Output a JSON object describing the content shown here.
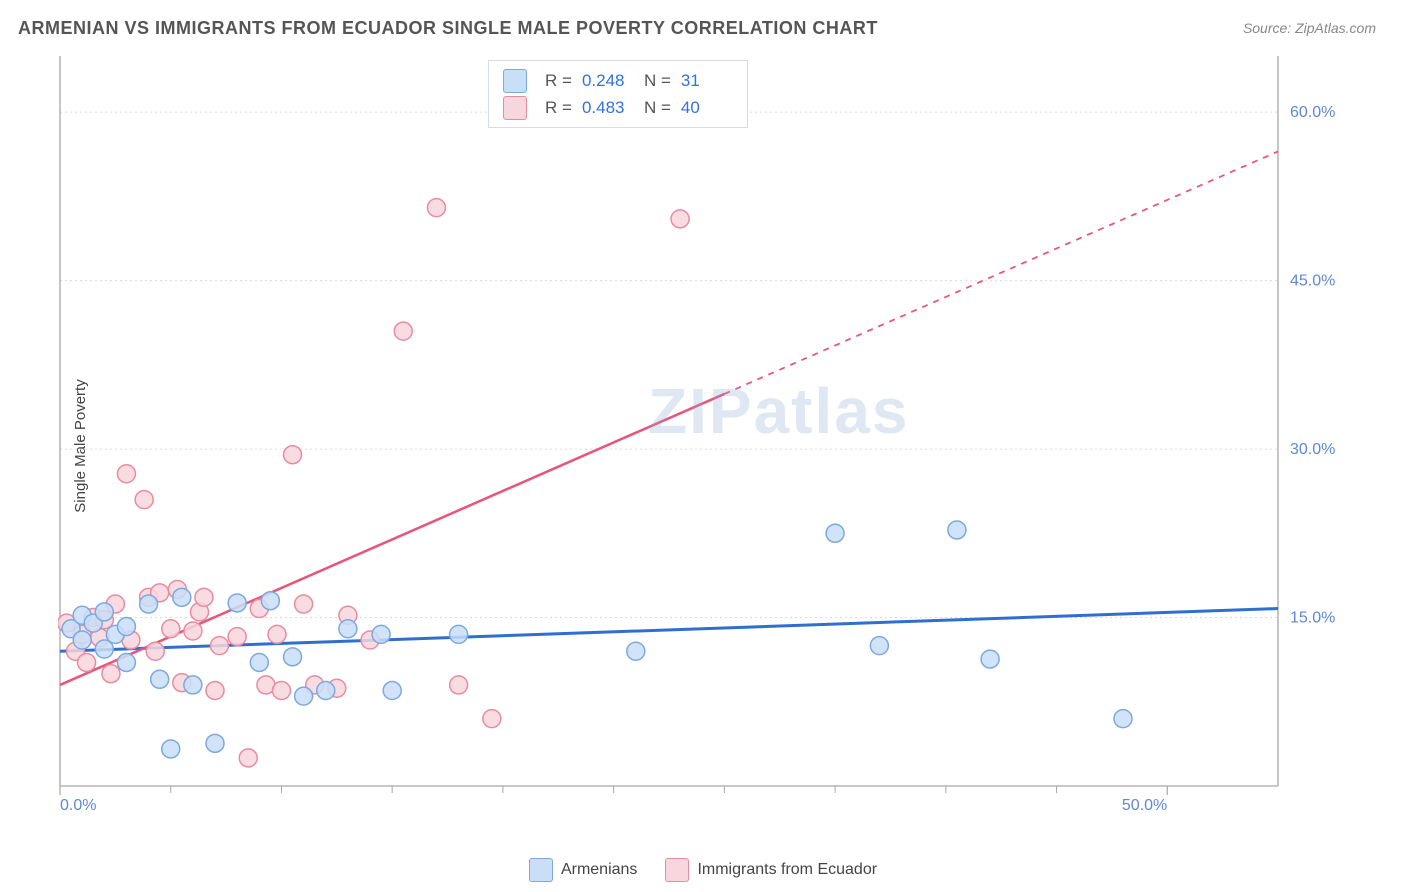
{
  "title": "ARMENIAN VS IMMIGRANTS FROM ECUADOR SINGLE MALE POVERTY CORRELATION CHART",
  "source": "Source: ZipAtlas.com",
  "ylabel": "Single Male Poverty",
  "watermark_zip": "ZIP",
  "watermark_atlas": "atlas",
  "chart": {
    "type": "scatter",
    "background_color": "#ffffff",
    "grid_color": "#dcdcdc",
    "axis_color": "#a8a8a8",
    "xlim": [
      0,
      55
    ],
    "ylim": [
      0,
      65
    ],
    "x_ticks": [
      0,
      50
    ],
    "x_tick_labels": [
      "0.0%",
      "50.0%"
    ],
    "x_minor_ticks": [
      5,
      10,
      15,
      20,
      25,
      30,
      35,
      40,
      45
    ],
    "y_ticks": [
      15,
      30,
      45,
      60
    ],
    "y_tick_labels": [
      "15.0%",
      "30.0%",
      "45.0%",
      "60.0%"
    ],
    "tick_label_color": "#5e88d6",
    "tick_fontsize": 16,
    "marker_radius": 9,
    "marker_stroke_width": 1.5,
    "series": [
      {
        "name": "Armenians",
        "fill": "#c9def7",
        "stroke": "#7da9e0",
        "line_color": "#2f6fd0",
        "line_width": 3,
        "R": "0.248",
        "N": "31",
        "regression": {
          "x1": 0,
          "y1": 12.0,
          "x2": 55,
          "y2": 15.8,
          "dash_from_x": null
        },
        "points": [
          [
            0.5,
            14.0
          ],
          [
            1.0,
            15.2
          ],
          [
            1.0,
            13.0
          ],
          [
            1.5,
            14.5
          ],
          [
            2.0,
            15.5
          ],
          [
            2.0,
            12.2
          ],
          [
            2.5,
            13.5
          ],
          [
            3.0,
            14.2
          ],
          [
            3.0,
            11.0
          ],
          [
            4.0,
            16.2
          ],
          [
            4.5,
            9.5
          ],
          [
            5.0,
            3.3
          ],
          [
            5.5,
            16.8
          ],
          [
            6.0,
            9.0
          ],
          [
            7.0,
            3.8
          ],
          [
            8.0,
            16.3
          ],
          [
            9.0,
            11.0
          ],
          [
            9.5,
            16.5
          ],
          [
            10.5,
            11.5
          ],
          [
            11.0,
            8.0
          ],
          [
            12.0,
            8.5
          ],
          [
            13.0,
            14.0
          ],
          [
            14.5,
            13.5
          ],
          [
            15.0,
            8.5
          ],
          [
            18.0,
            13.5
          ],
          [
            26.0,
            12.0
          ],
          [
            35.0,
            22.5
          ],
          [
            37.0,
            12.5
          ],
          [
            40.5,
            22.8
          ],
          [
            42.0,
            11.3
          ],
          [
            48.0,
            6.0
          ]
        ]
      },
      {
        "name": "Immigrants from Ecuador",
        "fill": "#f8d6dd",
        "stroke": "#e98ba1",
        "line_color": "#e8547a",
        "line_width": 2.5,
        "R": "0.483",
        "N": "40",
        "regression": {
          "x1": 0,
          "y1": 9.0,
          "x2": 55,
          "y2": 56.5,
          "dash_from_x": 30
        },
        "points": [
          [
            0.3,
            14.5
          ],
          [
            0.7,
            12.0
          ],
          [
            1.0,
            13.5
          ],
          [
            1.2,
            11.0
          ],
          [
            1.5,
            15.0
          ],
          [
            1.8,
            13.2
          ],
          [
            2.0,
            14.8
          ],
          [
            2.3,
            10.0
          ],
          [
            2.5,
            16.2
          ],
          [
            3.0,
            27.8
          ],
          [
            3.2,
            13.0
          ],
          [
            3.8,
            25.5
          ],
          [
            4.0,
            16.8
          ],
          [
            4.3,
            12.0
          ],
          [
            4.5,
            17.2
          ],
          [
            5.0,
            14.0
          ],
          [
            5.3,
            17.5
          ],
          [
            5.5,
            9.2
          ],
          [
            6.0,
            13.8
          ],
          [
            6.3,
            15.5
          ],
          [
            6.5,
            16.8
          ],
          [
            7.0,
            8.5
          ],
          [
            7.2,
            12.5
          ],
          [
            8.0,
            13.3
          ],
          [
            8.5,
            2.5
          ],
          [
            9.0,
            15.8
          ],
          [
            9.3,
            9.0
          ],
          [
            9.8,
            13.5
          ],
          [
            10.0,
            8.5
          ],
          [
            10.5,
            29.5
          ],
          [
            11.0,
            16.2
          ],
          [
            11.5,
            9.0
          ],
          [
            12.5,
            8.7
          ],
          [
            13.0,
            15.2
          ],
          [
            14.0,
            13.0
          ],
          [
            15.5,
            40.5
          ],
          [
            17.0,
            51.5
          ],
          [
            18.0,
            9.0
          ],
          [
            19.5,
            6.0
          ],
          [
            28.0,
            50.5
          ]
        ]
      }
    ]
  },
  "stats_labels": {
    "R": "R =",
    "N": "N ="
  },
  "bottom_legend": {
    "items": [
      {
        "label": "Armenians",
        "fill": "#c9def7",
        "stroke": "#7da9e0"
      },
      {
        "label": "Immigrants from Ecuador",
        "fill": "#f8d6dd",
        "stroke": "#e98ba1"
      }
    ]
  }
}
